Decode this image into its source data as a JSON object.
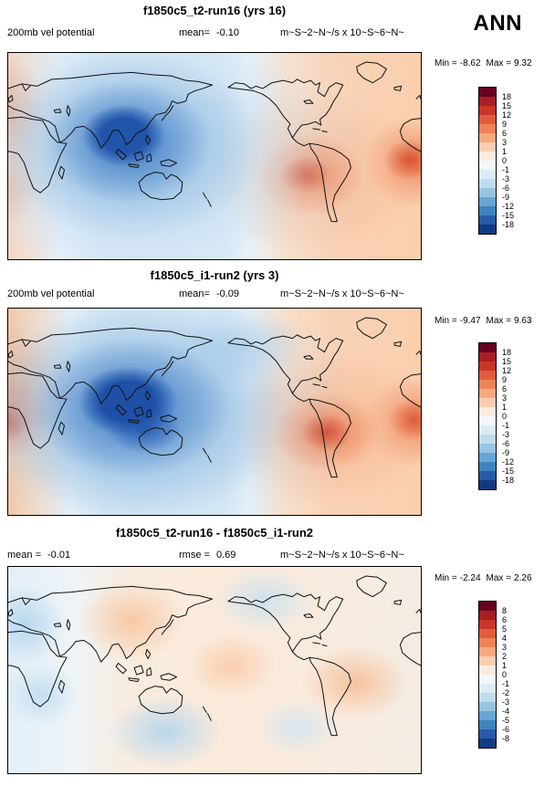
{
  "header": {
    "season": "ANN"
  },
  "panels": [
    {
      "title": "f1850c5_t2-run16 (yrs 16)",
      "var_label": "200mb vel potential",
      "stats": [
        {
          "label": "mean=",
          "value": "-0.10"
        }
      ],
      "units": "m~S~2~N~/s x 10~S~6~N~",
      "min_label": "Min =",
      "min_value": "-8.62",
      "max_label": "Max =",
      "max_value": "9.32",
      "colorbar": {
        "labels": [
          "18",
          "15",
          "12",
          "9",
          "6",
          "3",
          "1",
          "0",
          "-1",
          "-3",
          "-6",
          "-9",
          "-12",
          "-15",
          "-18"
        ],
        "colors": [
          "#67001f",
          "#a81e24",
          "#c93527",
          "#e25b3c",
          "#ef8255",
          "#f6a87e",
          "#fbcdb0",
          "#fdeadf",
          "#f2f8fc",
          "#dcebf6",
          "#bfdcef",
          "#97c4e3",
          "#68a5d5",
          "#3f83c1",
          "#265ba9",
          "#123a80"
        ]
      }
    },
    {
      "title": "f1850c5_i1-run2 (yrs 3)",
      "var_label": "200mb vel potential",
      "stats": [
        {
          "label": "mean=",
          "value": "-0.09"
        }
      ],
      "units": "m~S~2~N~/s x 10~S~6~N~",
      "min_label": "Min =",
      "min_value": "-9.47",
      "max_label": "Max =",
      "max_value": "9.63",
      "colorbar": {
        "labels": [
          "18",
          "15",
          "12",
          "9",
          "6",
          "3",
          "1",
          "0",
          "-1",
          "-3",
          "-6",
          "-9",
          "-12",
          "-15",
          "-18"
        ],
        "colors": [
          "#67001f",
          "#a81e24",
          "#c93527",
          "#e25b3c",
          "#ef8255",
          "#f6a87e",
          "#fbcdb0",
          "#fdeadf",
          "#f2f8fc",
          "#dcebf6",
          "#bfdcef",
          "#97c4e3",
          "#68a5d5",
          "#3f83c1",
          "#265ba9",
          "#123a80"
        ]
      }
    },
    {
      "title": "f1850c5_t2-run16 - f1850c5_i1-run2",
      "stats": [
        {
          "label": "mean =",
          "value": "-0.01"
        },
        {
          "label": "rmse =",
          "value": "0.69"
        }
      ],
      "units": "m~S~2~N~/s x 10~S~6~N~",
      "min_label": "Min =",
      "min_value": "-2.24",
      "max_label": "Max =",
      "max_value": "2.26",
      "colorbar": {
        "labels": [
          "8",
          "6",
          "5",
          "4",
          "3",
          "2",
          "1",
          "0",
          "-1",
          "-2",
          "-3",
          "-4",
          "-5",
          "-6",
          "-8"
        ],
        "colors": [
          "#67001f",
          "#a81e24",
          "#c93527",
          "#e25b3c",
          "#ef8255",
          "#f6a87e",
          "#fbcdb0",
          "#fdeadf",
          "#f2f8fc",
          "#dcebf6",
          "#bfdcef",
          "#97c4e3",
          "#68a5d5",
          "#3f83c1",
          "#265ba9",
          "#123a80"
        ]
      }
    }
  ],
  "chart_data": [
    {
      "type": "heatmap",
      "subtype": "filled-contour-global-map",
      "title": "f1850c5_t2-run16 (yrs 16)",
      "variable": "200mb vel potential",
      "season": "ANN",
      "units_raw": "m~S~2~N~/s x 10~S~6~N~",
      "mean": -0.1,
      "min": -8.62,
      "max": 9.32,
      "contour_levels": [
        -18,
        -15,
        -12,
        -9,
        -6,
        -3,
        -1,
        0,
        1,
        3,
        6,
        9,
        12,
        15,
        18
      ],
      "palette_high_to_low": [
        "#67001f",
        "#a81e24",
        "#c93527",
        "#e25b3c",
        "#ef8255",
        "#f6a87e",
        "#fbcdb0",
        "#fdeadf",
        "#f2f8fc",
        "#dcebf6",
        "#bfdcef",
        "#97c4e3",
        "#68a5d5",
        "#3f83c1",
        "#265ba9",
        "#123a80"
      ],
      "map_extent": {
        "lon": [
          0,
          360
        ],
        "lat": [
          -90,
          90
        ]
      },
      "anomaly_centers": [
        {
          "region": "south Asia / Indian Ocean",
          "sign": "negative",
          "approx_peak": -9
        },
        {
          "region": "eastern tropical Pacific",
          "sign": "positive",
          "approx_peak": 9
        },
        {
          "region": "tropical Atlantic near map right edge",
          "sign": "positive",
          "approx_peak": 9
        }
      ]
    },
    {
      "type": "heatmap",
      "subtype": "filled-contour-global-map",
      "title": "f1850c5_i1-run2 (yrs 3)",
      "variable": "200mb vel potential",
      "season": "ANN",
      "units_raw": "m~S~2~N~/s x 10~S~6~N~",
      "mean": -0.09,
      "min": -9.47,
      "max": 9.63,
      "contour_levels": [
        -18,
        -15,
        -12,
        -9,
        -6,
        -3,
        -1,
        0,
        1,
        3,
        6,
        9,
        12,
        15,
        18
      ],
      "palette_high_to_low": [
        "#67001f",
        "#a81e24",
        "#c93527",
        "#e25b3c",
        "#ef8255",
        "#f6a87e",
        "#fbcdb0",
        "#fdeadf",
        "#f2f8fc",
        "#dcebf6",
        "#bfdcef",
        "#97c4e3",
        "#68a5d5",
        "#3f83c1",
        "#265ba9",
        "#123a80"
      ],
      "map_extent": {
        "lon": [
          0,
          360
        ],
        "lat": [
          -90,
          90
        ]
      },
      "anomaly_centers": [
        {
          "region": "Maritime Continent / south Asia",
          "sign": "negative",
          "approx_peak": -9.5
        },
        {
          "region": "central-east tropical Pacific",
          "sign": "positive",
          "approx_peak": 9
        },
        {
          "region": "tropical Atlantic at left and right map edges",
          "sign": "positive",
          "approx_peak": 9.6
        }
      ]
    },
    {
      "type": "heatmap",
      "subtype": "filled-contour-global-map-difference",
      "title": "f1850c5_t2-run16 - f1850c5_i1-run2",
      "variable": "200mb vel potential",
      "season": "ANN",
      "units_raw": "m~S~2~N~/s x 10~S~6~N~",
      "mean": -0.01,
      "rmse": 0.69,
      "min": -2.24,
      "max": 2.26,
      "contour_levels": [
        -8,
        -6,
        -5,
        -4,
        -3,
        -2,
        -1,
        0,
        1,
        2,
        3,
        4,
        5,
        6,
        8
      ],
      "palette_high_to_low": [
        "#67001f",
        "#a81e24",
        "#c93527",
        "#e25b3c",
        "#ef8255",
        "#f6a87e",
        "#fbcdb0",
        "#fdeadf",
        "#f2f8fc",
        "#dcebf6",
        "#bfdcef",
        "#97c4e3",
        "#68a5d5",
        "#3f83c1",
        "#265ba9",
        "#123a80"
      ],
      "map_extent": {
        "lon": [
          0,
          360
        ],
        "lat": [
          -90,
          90
        ]
      },
      "anomaly_centers": [
        {
          "region": "weak mixed differences globally, mostly within ±2",
          "sign": "mixed",
          "approx_peak": 2
        }
      ]
    }
  ]
}
